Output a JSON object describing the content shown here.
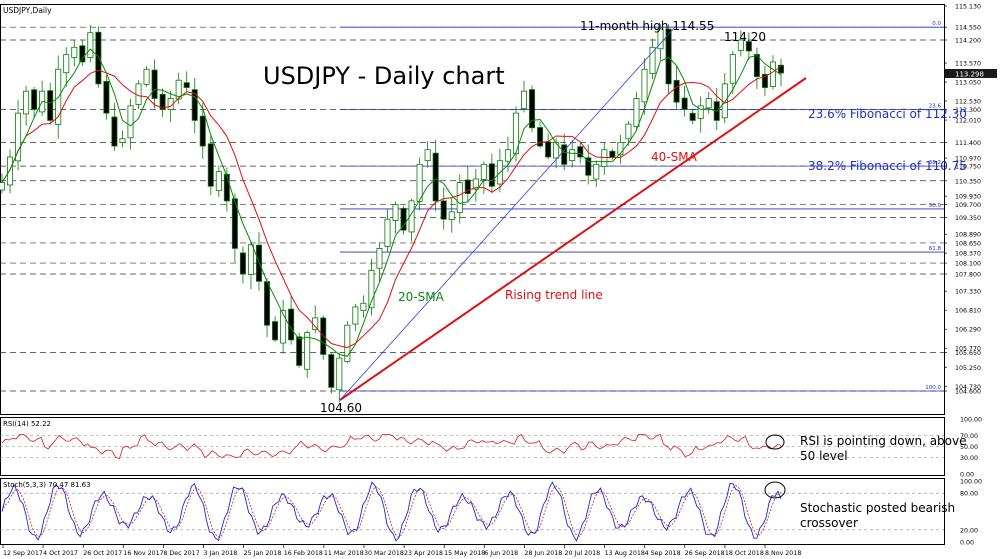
{
  "window": {
    "title": "USDJPY,Daily",
    "rsi_label": "RSI(14) 52.22",
    "stoch_label": "Stoch(5,3,3) 70.47 81.63"
  },
  "annotations": {
    "chart_title": "USDJPY - Daily chart",
    "high_label": "11-month high 114.55",
    "peak_label": "114.20",
    "low_label": "104.60",
    "fib236_label": "23.6% Fibonacci of 112.30",
    "fib382_label": "38.2% Fibonacci of 110.75",
    "sma40_label": "40-SMA",
    "sma20_label": "20-SMA",
    "trend_label": "Rising trend line",
    "rsi_note_line1": "RSI is pointing down, above",
    "rsi_note_line2": "50 level",
    "stoch_note_line1": "Stochastic posted bearish",
    "stoch_note_line2": "crossover"
  },
  "fib_labels": [
    "0.0",
    "23.6",
    "38.2",
    "50.0",
    "61.8",
    "100.0"
  ],
  "colors": {
    "candle": "#0a7a0a",
    "sma20": "#0a8a0a",
    "sma40": "#e01010",
    "trend": "#e01010",
    "fib": "#2030c0",
    "rsi": "#d02020",
    "stoch_main": "#1a2ad0",
    "stoch_signal": "#d02020"
  },
  "chart_data": [
    {
      "type": "candlestick",
      "title": "USDJPY - Daily chart",
      "ylim": [
        104.3,
        115.13
      ],
      "x_tick_labels": [
        "12 Sep 2017",
        "4 Oct 2017",
        "26 Oct 2017",
        "16 Nov 2017",
        "8 Dec 2017",
        "3 Jan 2018",
        "25 Jan 2018",
        "16 Feb 2018",
        "11 Mar 2018",
        "30 Mar 2018",
        "23 Apr 2018",
        "15 May 2018",
        "6 Jun 2018",
        "28 Jun 2018",
        "20 Jul 2018",
        "13 Aug 2018",
        "4 Sep 2018",
        "26 Sep 2018",
        "18 Oct 2018",
        "8 Nov 2018"
      ],
      "y_tick_labels": [
        "115.130",
        "114.550",
        "114.200",
        "113.570",
        "113.298",
        "113.050",
        "112.530",
        "112.300",
        "112.010",
        "111.400",
        "110.970",
        "110.750",
        "110.350",
        "109.930",
        "109.700",
        "109.350",
        "108.890",
        "108.650",
        "108.370",
        "108.100",
        "107.800",
        "107.330",
        "106.810",
        "106.290",
        "105.770",
        "105.650",
        "105.250",
        "104.730",
        "104.600"
      ],
      "horizontal_levels": [
        114.55,
        114.2,
        112.3,
        111.4,
        110.75,
        110.35,
        109.7,
        109.35,
        108.65,
        108.1,
        107.8,
        105.65,
        104.6
      ],
      "fib_levels": [
        {
          "label": "0.0",
          "value": 114.55
        },
        {
          "label": "23.6",
          "value": 112.3
        },
        {
          "label": "38.2",
          "value": 110.75
        },
        {
          "label": "50.0",
          "value": 109.58
        },
        {
          "label": "61.8",
          "value": 108.4
        },
        {
          "label": "100.0",
          "value": 104.6
        }
      ],
      "last_price": 113.298,
      "key_points": {
        "high": 114.55,
        "recent_peak": 114.2,
        "low": 104.6
      },
      "close_path": [
        110.3,
        111.0,
        112.2,
        112.8,
        112.3,
        112.8,
        112.0,
        113.4,
        113.8,
        114.0,
        113.6,
        114.4,
        113.0,
        112.2,
        111.3,
        111.5,
        112.4,
        113.0,
        113.4,
        112.6,
        112.3,
        112.6,
        113.1,
        112.9,
        112.0,
        111.3,
        110.2,
        110.6,
        109.8,
        108.5,
        107.8,
        108.6,
        107.6,
        106.4,
        106.0,
        106.8,
        106.0,
        105.3,
        106.2,
        106.6,
        105.6,
        104.7,
        105.5,
        106.4,
        106.9,
        107.0,
        107.9,
        108.5,
        109.3,
        109.7,
        109.0,
        109.8,
        110.8,
        111.2,
        109.8,
        109.3,
        109.5,
        110.3,
        110.0,
        110.4,
        110.8,
        110.2,
        110.9,
        111.2,
        112.2,
        112.8,
        111.8,
        111.3,
        111.0,
        111.4,
        110.8,
        111.2,
        111.0,
        110.5,
        110.8,
        111.2,
        111.0,
        111.4,
        111.9,
        112.6,
        113.4,
        114.0,
        114.5,
        113.0,
        112.5,
        112.3,
        112.0,
        112.4,
        112.6,
        112.0,
        113.0,
        113.8,
        114.2,
        113.9,
        113.2,
        112.9,
        113.6,
        113.3
      ]
    },
    {
      "type": "line",
      "title": "RSI(14) 52.22",
      "ylim": [
        0,
        100
      ],
      "y_tick_labels": [
        "100.00",
        "70.00",
        "50.00",
        "30.00",
        "0.00"
      ],
      "levels": [
        70,
        50,
        30
      ],
      "last_value": 52.22
    },
    {
      "type": "line",
      "title": "Stoch(5,3,3) 70.47 81.63",
      "ylim": [
        0,
        100
      ],
      "y_tick_labels": [
        "100.00",
        "80.00",
        "20.00",
        "0.00"
      ],
      "levels": [
        80,
        20
      ],
      "last_values": [
        70.47,
        81.63
      ]
    }
  ]
}
